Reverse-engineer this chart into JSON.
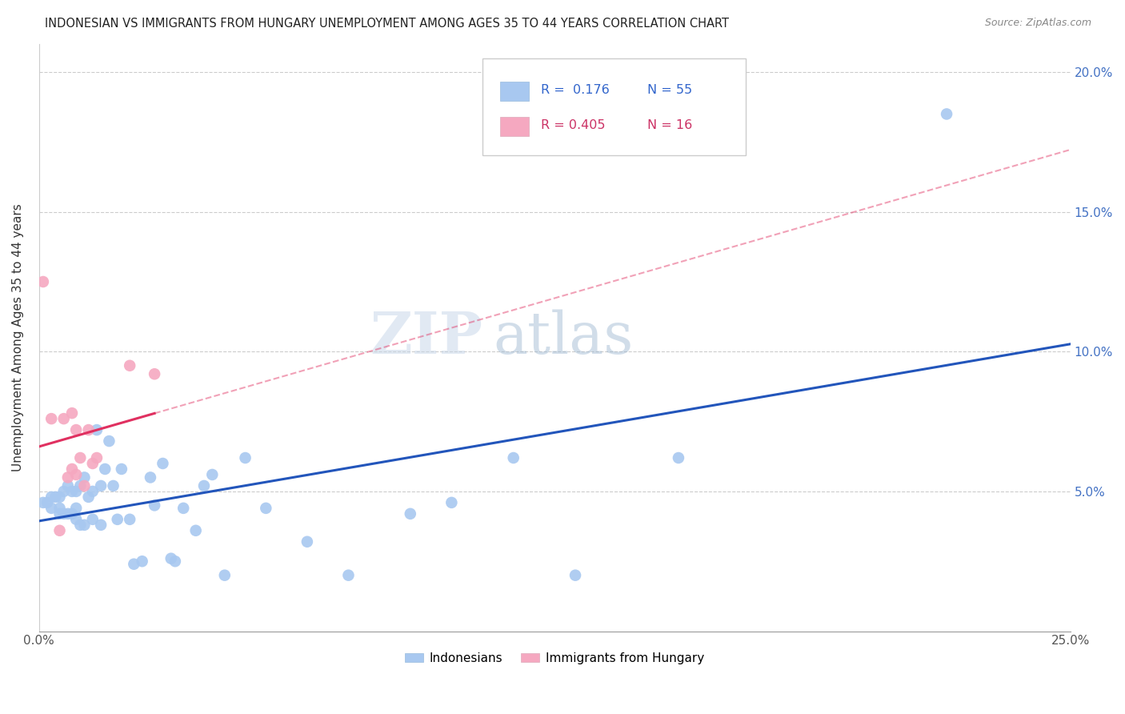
{
  "title": "INDONESIAN VS IMMIGRANTS FROM HUNGARY UNEMPLOYMENT AMONG AGES 35 TO 44 YEARS CORRELATION CHART",
  "source": "Source: ZipAtlas.com",
  "ylabel": "Unemployment Among Ages 35 to 44 years",
  "xlim": [
    0.0,
    0.25
  ],
  "ylim": [
    0.0,
    0.21
  ],
  "indonesian_color": "#a8c8f0",
  "hungary_color": "#f5a8c0",
  "indonesian_line_color": "#2255bb",
  "hungary_line_color": "#e03060",
  "legend_label1": "Indonesians",
  "legend_label2": "Immigrants from Hungary",
  "watermark_zip": "ZIP",
  "watermark_atlas": "atlas",
  "indonesian_x": [
    0.001,
    0.002,
    0.003,
    0.003,
    0.004,
    0.005,
    0.005,
    0.005,
    0.006,
    0.006,
    0.007,
    0.007,
    0.008,
    0.008,
    0.009,
    0.009,
    0.009,
    0.01,
    0.01,
    0.011,
    0.011,
    0.012,
    0.013,
    0.013,
    0.014,
    0.015,
    0.015,
    0.016,
    0.017,
    0.018,
    0.019,
    0.02,
    0.022,
    0.023,
    0.025,
    0.027,
    0.028,
    0.03,
    0.032,
    0.033,
    0.035,
    0.038,
    0.04,
    0.042,
    0.045,
    0.05,
    0.055,
    0.065,
    0.075,
    0.09,
    0.1,
    0.115,
    0.13,
    0.155,
    0.22
  ],
  "indonesian_y": [
    0.046,
    0.046,
    0.044,
    0.048,
    0.048,
    0.048,
    0.044,
    0.042,
    0.05,
    0.042,
    0.052,
    0.042,
    0.05,
    0.042,
    0.05,
    0.044,
    0.04,
    0.052,
    0.038,
    0.055,
    0.038,
    0.048,
    0.05,
    0.04,
    0.072,
    0.052,
    0.038,
    0.058,
    0.068,
    0.052,
    0.04,
    0.058,
    0.04,
    0.024,
    0.025,
    0.055,
    0.045,
    0.06,
    0.026,
    0.025,
    0.044,
    0.036,
    0.052,
    0.056,
    0.02,
    0.062,
    0.044,
    0.032,
    0.02,
    0.042,
    0.046,
    0.062,
    0.02,
    0.062,
    0.185
  ],
  "hungary_x": [
    0.001,
    0.003,
    0.005,
    0.006,
    0.007,
    0.008,
    0.008,
    0.009,
    0.009,
    0.01,
    0.011,
    0.012,
    0.013,
    0.014,
    0.022,
    0.028
  ],
  "hungary_y": [
    0.125,
    0.076,
    0.036,
    0.076,
    0.055,
    0.078,
    0.058,
    0.072,
    0.056,
    0.062,
    0.052,
    0.072,
    0.06,
    0.062,
    0.095,
    0.092
  ]
}
